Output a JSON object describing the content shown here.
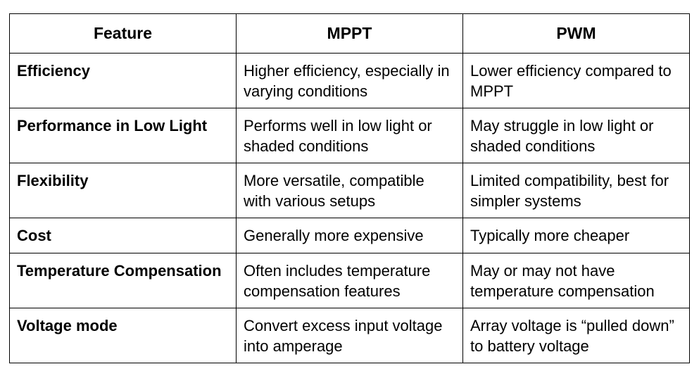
{
  "table": {
    "headers": [
      "Feature",
      "MPPT",
      "PWM"
    ],
    "rows": [
      {
        "feature": "Efficiency",
        "mppt": "Higher efficiency, especially in varying conditions",
        "pwm": "Lower efficiency compared to MPPT"
      },
      {
        "feature": "Performance in Low Light",
        "mppt": "Performs well in low light or shaded conditions",
        "pwm": "May struggle in low light or shaded conditions"
      },
      {
        "feature": "Flexibility",
        "mppt": "More versatile, compatible with various setups",
        "pwm": "Limited compatibility, best for simpler systems"
      },
      {
        "feature": "Cost",
        "mppt": "Generally more expensive",
        "pwm": "Typically more cheaper"
      },
      {
        "feature": "Temperature Compensation",
        "mppt": "Often includes temperature compensation features",
        "pwm": "May or may not have temperature compensation"
      },
      {
        "feature": "Voltage mode",
        "mppt": "Convert excess input voltage into amperage",
        "pwm": "Array voltage is “pulled down” to battery voltage"
      }
    ]
  }
}
